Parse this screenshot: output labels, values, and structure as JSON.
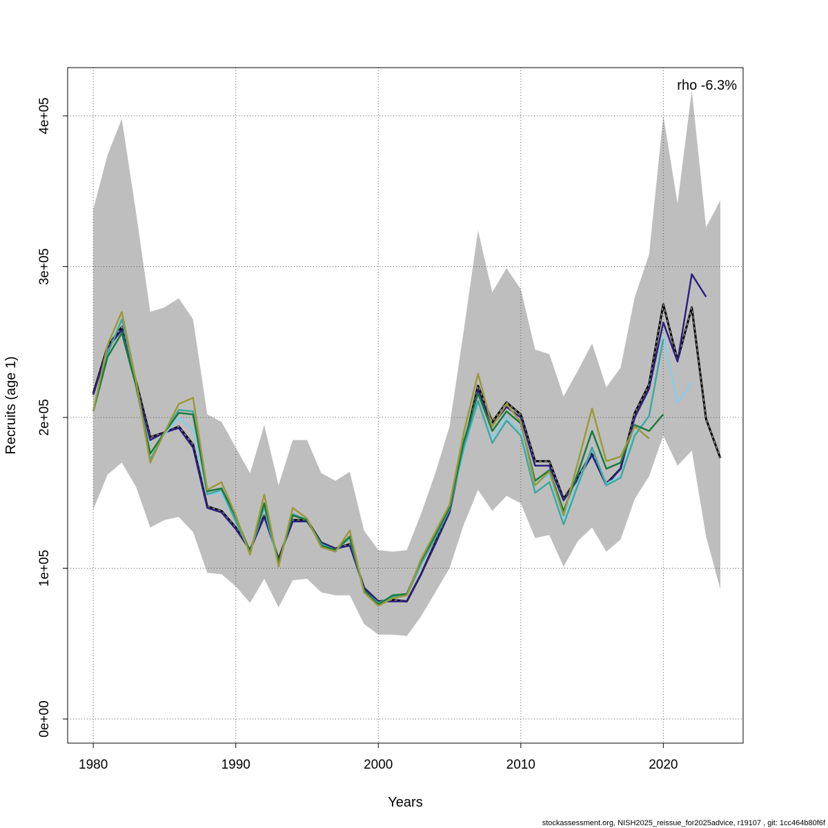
{
  "chart_data": {
    "type": "line",
    "xlabel": "Years",
    "ylabel": "Recruits (age 1)",
    "annotation": "rho -6.3%",
    "footer": "stockassessment.org, NISH2025_reissue_for2025advice, r19107 , git: 1cc464b80f6f",
    "xlim": [
      1978.2,
      2025.6
    ],
    "ylim": [
      -16000,
      432000
    ],
    "x_ticks": [
      1980,
      1990,
      2000,
      2010,
      2020
    ],
    "y_ticks": [
      {
        "value": 0,
        "label": "0e+00"
      },
      {
        "value": 100000,
        "label": "1e+05"
      },
      {
        "value": 200000,
        "label": "2e+05"
      },
      {
        "value": 300000,
        "label": "3e+05"
      },
      {
        "value": 400000,
        "label": "4e+05"
      }
    ],
    "grid": true,
    "confidence_band": {
      "x": [
        1980,
        1981,
        1982,
        1983,
        1984,
        1985,
        1986,
        1987,
        1988,
        1989,
        1990,
        1991,
        1992,
        1993,
        1994,
        1995,
        1996,
        1997,
        1998,
        1999,
        2000,
        2001,
        2002,
        2003,
        2004,
        2005,
        2006,
        2007,
        2008,
        2009,
        2010,
        2011,
        2012,
        2013,
        2014,
        2015,
        2016,
        2017,
        2018,
        2019,
        2020,
        2021,
        2022,
        2023,
        2024
      ],
      "upper": [
        338000,
        374000,
        398000,
        336000,
        270000,
        273000,
        279000,
        265000,
        202000,
        197000,
        180000,
        163000,
        195000,
        155000,
        185000,
        185000,
        163000,
        158000,
        164000,
        125000,
        112000,
        111000,
        112000,
        136000,
        163000,
        194000,
        258000,
        324000,
        283000,
        299000,
        285000,
        245000,
        242000,
        214000,
        231000,
        249000,
        220000,
        233000,
        280000,
        308000,
        400000,
        342000,
        417000,
        326000,
        344000
      ],
      "lower": [
        139000,
        162000,
        170000,
        154000,
        127000,
        132000,
        134000,
        124000,
        97000,
        96000,
        88000,
        77000,
        93000,
        74000,
        92000,
        93000,
        84000,
        82000,
        82000,
        63000,
        56000,
        56000,
        55000,
        68000,
        84000,
        100000,
        129000,
        152000,
        138000,
        148000,
        143000,
        120000,
        122000,
        101000,
        118000,
        127000,
        111000,
        119000,
        146000,
        161000,
        188000,
        168000,
        178000,
        121000,
        86000
      ]
    },
    "series": [
      {
        "color": "#333333",
        "dashed": true,
        "x": [
          1980,
          1981,
          1982,
          1983,
          1984,
          1985,
          1986,
          1987,
          1988,
          1989,
          1990,
          1991,
          1992,
          1993,
          1994,
          1995,
          1996,
          1997,
          1998,
          1999,
          2000,
          2001,
          2002,
          2003,
          2004,
          2005,
          2006,
          2007,
          2008,
          2009,
          2010,
          2011,
          2012,
          2013,
          2014,
          2015,
          2016,
          2017,
          2018,
          2019,
          2020,
          2021,
          2022,
          2023,
          2024
        ],
        "values": [
          216000,
          247000,
          260000,
          224000,
          187000,
          190000,
          194000,
          182000,
          141000,
          138000,
          127000,
          112000,
          135000,
          106000,
          132000,
          132000,
          117000,
          113000,
          116000,
          87000,
          78000,
          79000,
          78000,
          96000,
          117000,
          138000,
          181000,
          221000,
          197000,
          210000,
          202000,
          171000,
          171000,
          146000,
          160000,
          177000,
          156000,
          166000,
          203000,
          222000,
          275000,
          238000,
          273000,
          199000,
          173000
        ]
      },
      {
        "color": "#2b2080",
        "dashed": false,
        "x": [
          1980,
          1981,
          1982,
          1983,
          1984,
          1985,
          1986,
          1987,
          1988,
          1989,
          1990,
          1991,
          1992,
          1993,
          1994,
          1995,
          1996,
          1997,
          1998,
          1999,
          2000,
          2001,
          2002,
          2003,
          2004,
          2005,
          2006,
          2007,
          2008,
          2009,
          2010,
          2011,
          2012,
          2013,
          2014,
          2015,
          2016,
          2017,
          2018,
          2019,
          2020,
          2021,
          2022,
          2023
        ],
        "values": [
          215000,
          246000,
          258000,
          222000,
          185000,
          190000,
          193000,
          180000,
          140000,
          137000,
          126000,
          112000,
          134000,
          106000,
          131000,
          131000,
          117000,
          113000,
          115000,
          87000,
          78000,
          78000,
          78000,
          96000,
          116000,
          137000,
          181000,
          218000,
          195000,
          207000,
          200000,
          168000,
          168000,
          145000,
          159000,
          175000,
          155000,
          166000,
          200000,
          219000,
          263000,
          237000,
          295000,
          280000
        ]
      },
      {
        "color": "#87ceeb",
        "dashed": false,
        "x": [
          1980,
          1981,
          1982,
          1983,
          1984,
          1985,
          1986,
          1987,
          1988,
          1989,
          1990,
          1991,
          1992,
          1993,
          1994,
          1995,
          1996,
          1997,
          1998,
          1999,
          2000,
          2001,
          2002,
          2003,
          2004,
          2005,
          2006,
          2007,
          2008,
          2009,
          2010,
          2011,
          2012,
          2013,
          2014,
          2015,
          2016,
          2017,
          2018,
          2019,
          2020,
          2021,
          2022
        ],
        "values": [
          204000,
          240000,
          256000,
          221000,
          176000,
          189000,
          200000,
          192000,
          149000,
          150000,
          131000,
          111000,
          140000,
          102000,
          136000,
          132000,
          115000,
          112000,
          120000,
          85000,
          76000,
          81000,
          82000,
          103000,
          120000,
          140000,
          178000,
          210000,
          186000,
          201000,
          190000,
          156000,
          162000,
          133000,
          157000,
          179000,
          156000,
          161000,
          190000,
          200000,
          254000,
          210000,
          223000
        ]
      },
      {
        "color": "#40a8a0",
        "dashed": false,
        "x": [
          1980,
          1981,
          1982,
          1983,
          1984,
          1985,
          1986,
          1987,
          1988,
          1989,
          1990,
          1991,
          1992,
          1993,
          1994,
          1995,
          1996,
          1997,
          1998,
          1999,
          2000,
          2001,
          2002,
          2003,
          2004,
          2005,
          2006,
          2007,
          2008,
          2009,
          2010,
          2011,
          2012,
          2013,
          2014,
          2015,
          2016,
          2017,
          2018,
          2019,
          2020
        ],
        "values": [
          204000,
          242000,
          265000,
          224000,
          172000,
          190000,
          205000,
          204000,
          149000,
          152000,
          131000,
          111000,
          141000,
          103000,
          136000,
          132000,
          116000,
          112000,
          120000,
          85000,
          77000,
          81000,
          82000,
          103000,
          120000,
          139000,
          180000,
          211000,
          183000,
          198000,
          188000,
          150000,
          157000,
          129000,
          155000,
          180000,
          155000,
          160000,
          188000,
          201000,
          252000
        ]
      },
      {
        "color": "#1a7a3c",
        "dashed": false,
        "x": [
          1980,
          1981,
          1982,
          1983,
          1984,
          1985,
          1986,
          1987,
          1988,
          1989,
          1990,
          1991,
          1992,
          1993,
          1994,
          1995,
          1996,
          1997,
          1998,
          1999,
          2000,
          2001,
          2002,
          2003,
          2004,
          2005,
          2006,
          2007,
          2008,
          2009,
          2010,
          2011,
          2012,
          2013,
          2014,
          2015,
          2016,
          2017,
          2018,
          2019,
          2020
        ],
        "values": [
          204000,
          240000,
          256000,
          221000,
          176000,
          190000,
          203000,
          202000,
          151000,
          153000,
          134000,
          111000,
          143000,
          104000,
          135000,
          132000,
          115000,
          112000,
          121000,
          85000,
          76000,
          82000,
          83000,
          105000,
          122000,
          140000,
          184000,
          216000,
          191000,
          204000,
          196000,
          158000,
          165000,
          138000,
          163000,
          191000,
          166000,
          170000,
          195000,
          191000,
          202000
        ]
      },
      {
        "color": "#9a9a3a",
        "dashed": false,
        "x": [
          1980,
          1981,
          1982,
          1983,
          1984,
          1985,
          1986,
          1987,
          1988,
          1989,
          1990,
          1991,
          1992,
          1993,
          1994,
          1995,
          1996,
          1997,
          1998,
          1999,
          2000,
          2001,
          2002,
          2003,
          2004,
          2005,
          2006,
          2007,
          2008,
          2009,
          2010,
          2011,
          2012,
          2013,
          2014,
          2015,
          2016,
          2017,
          2018,
          2019
        ],
        "values": [
          204000,
          248000,
          270000,
          224000,
          170000,
          190000,
          209000,
          213000,
          152000,
          157000,
          135000,
          109000,
          149000,
          101000,
          140000,
          133000,
          114000,
          111000,
          125000,
          84000,
          75000,
          80000,
          82000,
          106000,
          124000,
          142000,
          190000,
          229000,
          194000,
          209000,
          197000,
          155000,
          164000,
          135000,
          170000,
          206000,
          171000,
          174000,
          194000,
          186000
        ]
      }
    ]
  }
}
